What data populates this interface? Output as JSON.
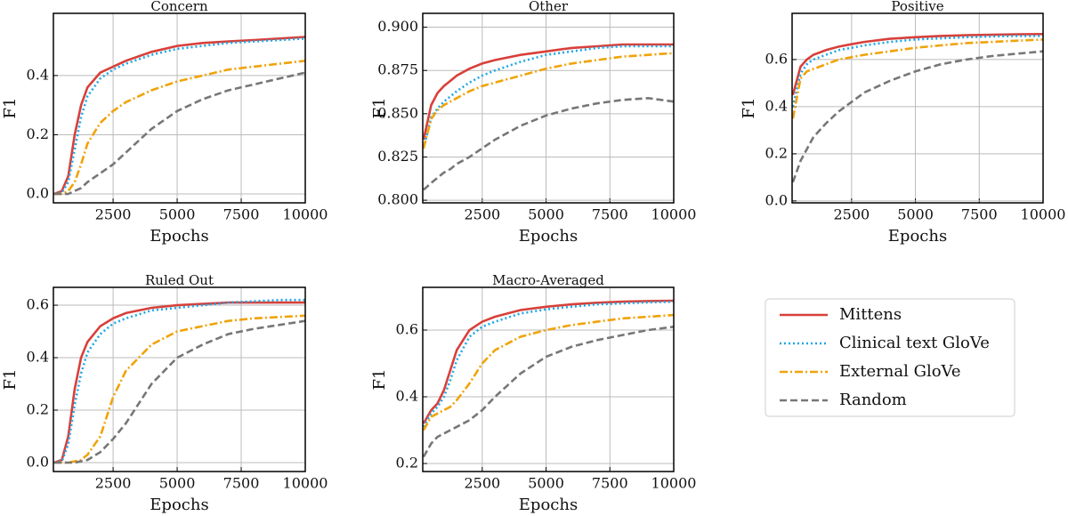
{
  "chart_data": [
    {
      "type": "line",
      "title": "Concern",
      "x_label": "Epochs",
      "y_label": "F1",
      "x": [
        200,
        500,
        750,
        1000,
        1250,
        1500,
        2000,
        2500,
        3000,
        4000,
        5000,
        6000,
        7000,
        8000,
        9000,
        10000
      ],
      "xlim": [
        170,
        10000
      ],
      "xticks": [
        2500,
        5000,
        7500,
        10000
      ],
      "ylim": [
        -0.03,
        0.61
      ],
      "yticks": [
        {
          "value": 0,
          "label": "0.0"
        },
        0.2,
        0.4
      ],
      "grid": true,
      "series": [
        {
          "name": "Mittens",
          "color": "#d8403a",
          "linestyle": "solid",
          "values": [
            0,
            0.01,
            0.06,
            0.2,
            0.3,
            0.36,
            0.41,
            0.43,
            0.45,
            0.48,
            0.5,
            0.51,
            0.515,
            0.52,
            0.525,
            0.53
          ]
        },
        {
          "name": "Clinical text GloVe",
          "color": "#1ea7e6",
          "linestyle": "dotted",
          "values": [
            0,
            0.005,
            0.04,
            0.15,
            0.26,
            0.33,
            0.39,
            0.42,
            0.44,
            0.47,
            0.49,
            0.5,
            0.51,
            0.515,
            0.52,
            0.525
          ]
        },
        {
          "name": "External GloVe",
          "color": "#f0a30a",
          "linestyle": "dashdot",
          "values": [
            0,
            0,
            0.01,
            0.04,
            0.1,
            0.17,
            0.24,
            0.28,
            0.31,
            0.35,
            0.38,
            0.4,
            0.42,
            0.43,
            0.44,
            0.45
          ]
        },
        {
          "name": "Random",
          "color": "#777777",
          "linestyle": "dashed",
          "values": [
            0,
            0,
            0,
            0.01,
            0.02,
            0.04,
            0.07,
            0.1,
            0.14,
            0.22,
            0.28,
            0.32,
            0.35,
            0.37,
            0.39,
            0.41
          ]
        }
      ]
    },
    {
      "type": "line",
      "title": "Other",
      "x_label": "Epochs",
      "y_label": "F1",
      "x": [
        200,
        500,
        750,
        1000,
        1250,
        1500,
        2000,
        2500,
        3000,
        4000,
        5000,
        6000,
        7000,
        8000,
        9000,
        10000
      ],
      "xlim": [
        170,
        10000
      ],
      "xticks": [
        2500,
        5000,
        7500,
        10000
      ],
      "ylim": [
        0.7985,
        0.908
      ],
      "yticks": [
        {
          "value": 0.8,
          "label": "0.800"
        },
        0.825,
        {
          "value": 0.85,
          "label": "0.850"
        },
        0.875,
        {
          "value": 0.9,
          "label": "0.900"
        }
      ],
      "grid": true,
      "series": [
        {
          "color": "#d8403a",
          "linestyle": "solid",
          "values": [
            0.835,
            0.855,
            0.862,
            0.866,
            0.869,
            0.872,
            0.876,
            0.879,
            0.881,
            0.884,
            0.886,
            0.888,
            0.889,
            0.89,
            0.89,
            0.89
          ]
        },
        {
          "color": "#1ea7e6",
          "linestyle": "dotted",
          "values": [
            0.83,
            0.848,
            0.853,
            0.857,
            0.86,
            0.863,
            0.868,
            0.872,
            0.875,
            0.88,
            0.884,
            0.886,
            0.888,
            0.889,
            0.889,
            0.889
          ]
        },
        {
          "color": "#f0a30a",
          "linestyle": "dashdot",
          "values": [
            0.83,
            0.847,
            0.852,
            0.855,
            0.857,
            0.859,
            0.863,
            0.866,
            0.868,
            0.872,
            0.876,
            0.879,
            0.881,
            0.883,
            0.884,
            0.885
          ]
        },
        {
          "color": "#777777",
          "linestyle": "dashed",
          "values": [
            0.806,
            0.81,
            0.813,
            0.816,
            0.818,
            0.821,
            0.825,
            0.83,
            0.835,
            0.843,
            0.849,
            0.853,
            0.856,
            0.858,
            0.859,
            0.857
          ]
        }
      ]
    },
    {
      "type": "line",
      "title": "Positive",
      "x_label": "Epochs",
      "y_label": "F1",
      "x": [
        200,
        500,
        750,
        1000,
        1250,
        1500,
        2000,
        2500,
        3000,
        4000,
        5000,
        6000,
        7000,
        8000,
        9000,
        10000
      ],
      "xlim": [
        170,
        10000
      ],
      "xticks": [
        2500,
        5000,
        7500,
        10000
      ],
      "ylim": [
        -0.008,
        0.796
      ],
      "yticks": [
        {
          "value": 0,
          "label": "0.0"
        },
        0.2,
        0.4,
        0.6
      ],
      "grid": true,
      "series": [
        {
          "color": "#d8403a",
          "linestyle": "solid",
          "values": [
            0.45,
            0.57,
            0.6,
            0.62,
            0.63,
            0.64,
            0.655,
            0.665,
            0.675,
            0.688,
            0.695,
            0.7,
            0.703,
            0.705,
            0.707,
            0.708
          ]
        },
        {
          "color": "#1ea7e6",
          "linestyle": "dotted",
          "values": [
            0.4,
            0.54,
            0.58,
            0.6,
            0.61,
            0.62,
            0.64,
            0.65,
            0.66,
            0.675,
            0.685,
            0.69,
            0.695,
            0.698,
            0.7,
            0.7
          ]
        },
        {
          "color": "#f0a30a",
          "linestyle": "dashdot",
          "values": [
            0.35,
            0.52,
            0.55,
            0.56,
            0.57,
            0.58,
            0.6,
            0.61,
            0.62,
            0.635,
            0.65,
            0.66,
            0.67,
            0.675,
            0.68,
            0.685
          ]
        },
        {
          "color": "#777777",
          "linestyle": "dashed",
          "values": [
            0.08,
            0.17,
            0.22,
            0.27,
            0.3,
            0.33,
            0.38,
            0.42,
            0.46,
            0.51,
            0.55,
            0.58,
            0.6,
            0.615,
            0.625,
            0.635
          ]
        }
      ]
    },
    {
      "type": "line",
      "title": "Ruled Out",
      "x_label": "Epochs",
      "y_label": "F1",
      "x": [
        200,
        500,
        750,
        1000,
        1250,
        1500,
        2000,
        2500,
        3000,
        4000,
        5000,
        6000,
        7000,
        8000,
        9000,
        10000
      ],
      "xlim": [
        170,
        10000
      ],
      "xticks": [
        2500,
        5000,
        7500,
        10000
      ],
      "ylim": [
        -0.034,
        0.668
      ],
      "yticks": [
        {
          "value": 0,
          "label": "0.0"
        },
        0.2,
        0.4,
        0.6
      ],
      "grid": true,
      "series": [
        {
          "color": "#d8403a",
          "linestyle": "solid",
          "values": [
            0,
            0.01,
            0.1,
            0.28,
            0.4,
            0.46,
            0.52,
            0.55,
            0.57,
            0.59,
            0.6,
            0.605,
            0.61,
            0.61,
            0.61,
            0.61
          ]
        },
        {
          "color": "#1ea7e6",
          "linestyle": "dotted",
          "values": [
            0,
            0.005,
            0.07,
            0.22,
            0.34,
            0.42,
            0.49,
            0.53,
            0.55,
            0.58,
            0.59,
            0.6,
            0.61,
            0.615,
            0.62,
            0.62
          ]
        },
        {
          "color": "#f0a30a",
          "linestyle": "dashdot",
          "values": [
            0,
            0,
            0,
            0.005,
            0.01,
            0.03,
            0.1,
            0.25,
            0.35,
            0.45,
            0.5,
            0.52,
            0.54,
            0.55,
            0.555,
            0.56
          ]
        },
        {
          "color": "#777777",
          "linestyle": "dashed",
          "values": [
            0,
            0,
            0,
            0,
            0.005,
            0.01,
            0.04,
            0.09,
            0.15,
            0.3,
            0.4,
            0.45,
            0.49,
            0.51,
            0.525,
            0.54
          ]
        }
      ]
    },
    {
      "type": "line",
      "title": "Macro-Averaged",
      "x_label": "Epochs",
      "y_label": "F1",
      "x": [
        200,
        500,
        750,
        1000,
        1250,
        1500,
        2000,
        2500,
        3000,
        4000,
        5000,
        6000,
        7000,
        8000,
        9000,
        10000
      ],
      "xlim": [
        170,
        10000
      ],
      "xticks": [
        2500,
        5000,
        7500,
        10000
      ],
      "ylim": [
        0.176,
        0.728
      ],
      "yticks": [
        0.2,
        0.4,
        0.6
      ],
      "grid": true,
      "series": [
        {
          "color": "#d8403a",
          "linestyle": "solid",
          "values": [
            0.32,
            0.36,
            0.38,
            0.42,
            0.48,
            0.54,
            0.6,
            0.625,
            0.64,
            0.66,
            0.67,
            0.677,
            0.682,
            0.685,
            0.687,
            0.688
          ]
        },
        {
          "color": "#1ea7e6",
          "linestyle": "dotted",
          "values": [
            0.31,
            0.35,
            0.37,
            0.4,
            0.45,
            0.51,
            0.58,
            0.61,
            0.625,
            0.65,
            0.662,
            0.67,
            0.677,
            0.68,
            0.683,
            0.685
          ]
        },
        {
          "color": "#f0a30a",
          "linestyle": "dashdot",
          "values": [
            0.3,
            0.34,
            0.35,
            0.36,
            0.37,
            0.39,
            0.44,
            0.5,
            0.54,
            0.58,
            0.6,
            0.615,
            0.625,
            0.635,
            0.64,
            0.645
          ]
        },
        {
          "color": "#777777",
          "linestyle": "dashed",
          "values": [
            0.22,
            0.26,
            0.28,
            0.29,
            0.3,
            0.31,
            0.33,
            0.36,
            0.4,
            0.47,
            0.52,
            0.55,
            0.57,
            0.585,
            0.6,
            0.61
          ]
        }
      ]
    }
  ]
}
